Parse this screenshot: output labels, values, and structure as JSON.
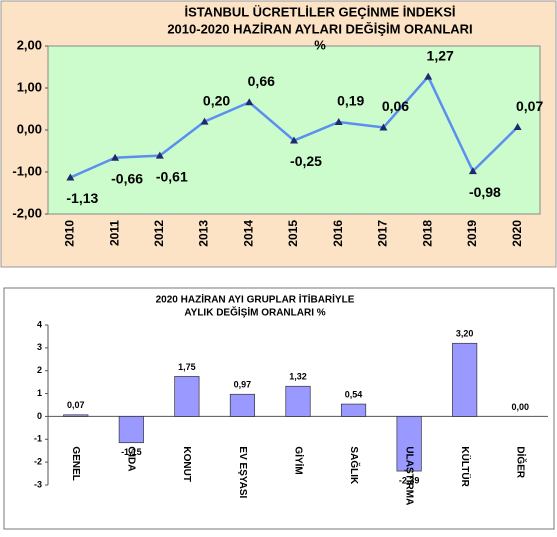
{
  "chart_data": [
    {
      "type": "line",
      "title": "İSTANBUL ÜCRETLİLER GEÇİNME İNDEKSİ",
      "subtitle": "2010-2020  HAZİRAN AYLARI DEĞİŞİM  ORANLARI",
      "unit": "%",
      "categories": [
        "2010",
        "2011",
        "2012",
        "2013",
        "2014",
        "2015",
        "2016",
        "2017",
        "2018",
        "2019",
        "2020"
      ],
      "values": [
        -1.13,
        -0.66,
        -0.61,
        0.2,
        0.66,
        -0.25,
        0.19,
        0.06,
        1.27,
        -0.98,
        0.07
      ],
      "value_labels": [
        "-1,13",
        "-0,66",
        "-0,61",
        "0,20",
        "0,66",
        "-0,25",
        "0,19",
        "0,06",
        "1,27",
        "-0,98",
        "0,07"
      ],
      "color": "#5b8ff0",
      "marker_color": "#1f2a6b",
      "ylim": [
        -2,
        2
      ],
      "yticks": [
        {
          "value": -2,
          "label": "-2,00"
        },
        {
          "value": -1,
          "label": "-1,00"
        },
        {
          "value": 0,
          "label": "0,00"
        },
        {
          "value": 1,
          "label": "1,00"
        },
        {
          "value": 2,
          "label": "2,00"
        }
      ],
      "grid": false
    },
    {
      "type": "bar",
      "title": "2020 HAZİRAN AYI  GRUPLAR İTİBARİYLE",
      "subtitle": "AYLIK DEĞİŞİM  ORANLARI  %",
      "categories": [
        "GENEL",
        "GIDA",
        "KONUT",
        "EV EŞYASI",
        "GİYİM",
        "SAĞLIK",
        "ULAŞTIRMA",
        "KÜLTÜR",
        "DİĞER"
      ],
      "values": [
        0.07,
        -1.15,
        1.75,
        0.97,
        1.32,
        0.54,
        -2.39,
        3.2,
        0.0
      ],
      "value_labels": [
        "0,07",
        "-1,15",
        "1,75",
        "0,97",
        "1,32",
        "0,54",
        "-2,39",
        "3,20",
        "0,00"
      ],
      "color": "#9999ff",
      "ylim": [
        -3,
        4
      ],
      "yticks": [
        -3,
        -2,
        -1,
        0,
        1,
        2,
        3,
        4
      ],
      "grid": false
    }
  ]
}
